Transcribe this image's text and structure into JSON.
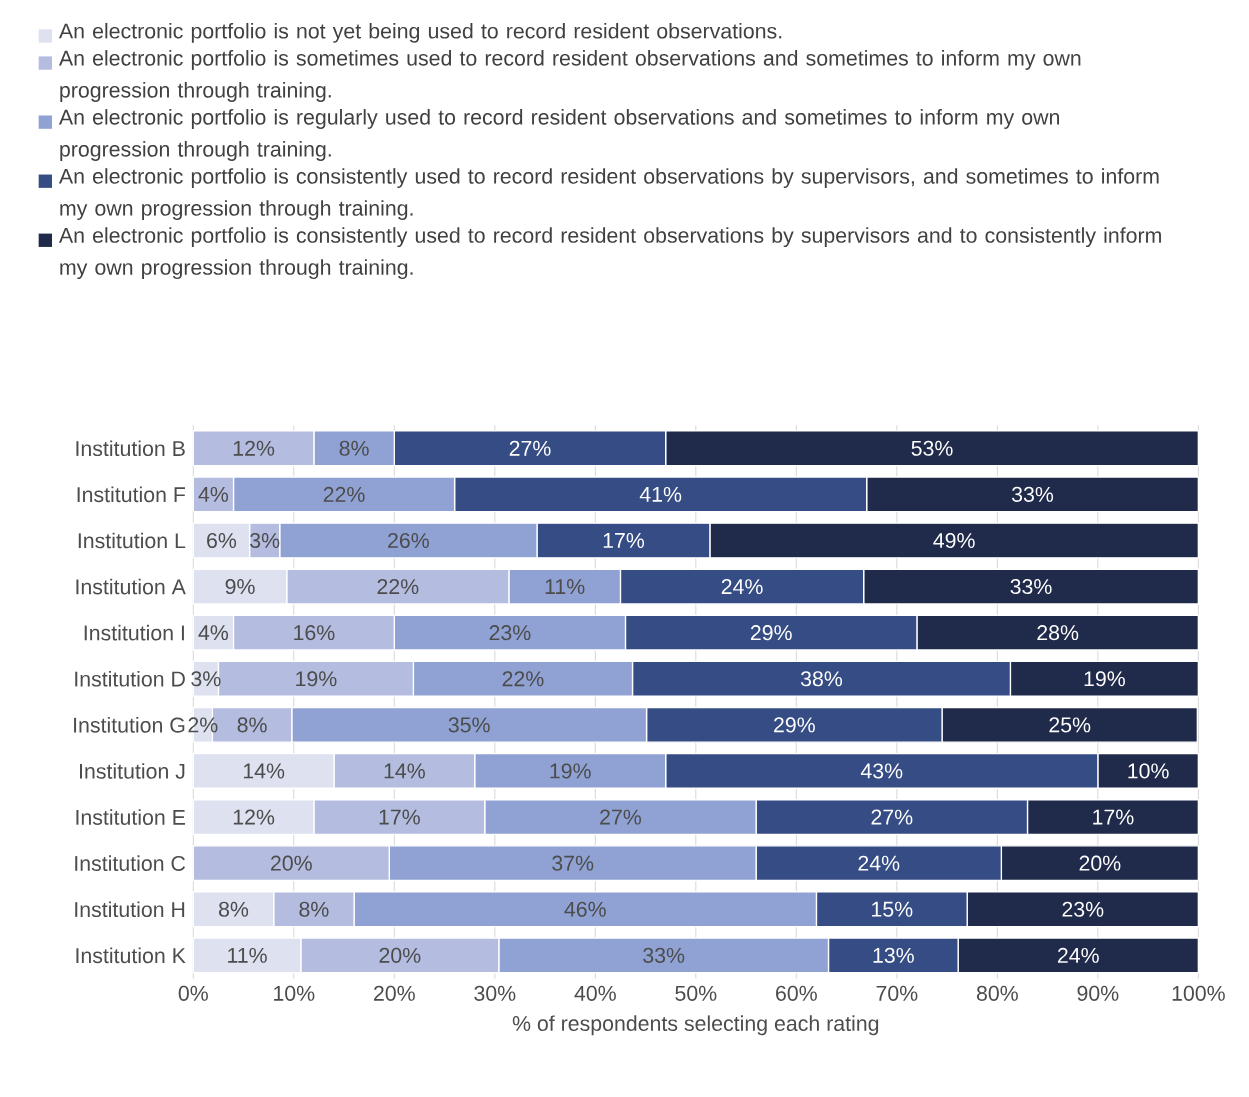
{
  "chart_data": {
    "type": "bar",
    "orientation": "horizontal",
    "stacked": true,
    "xlabel": "% of respondents selecting each rating",
    "categories": [
      "Institution B",
      "Institution F",
      "Institution L",
      "Institution A",
      "Institution I",
      "Institution D",
      "Institution G",
      "Institution J",
      "Institution E",
      "Institution C",
      "Institution H",
      "Institution K"
    ],
    "series": [
      {
        "name": "An electronic portfolio is  not yet  being used to record resident observations.",
        "color": "#dde1f0",
        "values": [
          null,
          null,
          5.6,
          9.3,
          4,
          2.5,
          1.9,
          14,
          12,
          null,
          8,
          10.7
        ],
        "value_labels": [
          null,
          null,
          "6%",
          "9%",
          "4%",
          "3%",
          "2%",
          "14%",
          "12%",
          null,
          "8%",
          "11%"
        ]
      },
      {
        "name": "An electronic portfolio is  sometimes used to record resident observations and  sometimes to inform my own progression through training.",
        "color": "#b4bde0",
        "values": [
          12,
          4,
          3,
          22.1,
          16,
          19.4,
          7.9,
          14,
          17,
          19.5,
          8,
          19.7
        ],
        "value_labels": [
          "12%",
          "4%",
          "3%",
          "22%",
          "16%",
          "19%",
          "8%",
          "14%",
          "17%",
          "20%",
          "8%",
          "20%"
        ]
      },
      {
        "name": "An electronic portfolio is  regularly used to record resident observations and  sometimes to inform my own progression through training.",
        "color": "#8fa2d3",
        "values": [
          8,
          22,
          25.6,
          11.1,
          23,
          21.8,
          35.3,
          19,
          27,
          36.5,
          46,
          32.8
        ],
        "value_labels": [
          "8%",
          "22%",
          "26%",
          "11%",
          "23%",
          "22%",
          "35%",
          "19%",
          "27%",
          "37%",
          "46%",
          "33%"
        ]
      },
      {
        "name": "An electronic portfolio is  consistently used to record resident observations by supervisors, and sometimes to inform my own progression through training.",
        "color": "#364c84",
        "values": [
          27,
          41,
          17.2,
          24.2,
          29,
          37.6,
          29.4,
          43,
          27,
          24.4,
          15,
          12.9
        ],
        "value_labels": [
          "27%",
          "41%",
          "17%",
          "24%",
          "29%",
          "38%",
          "29%",
          "43%",
          "27%",
          "24%",
          "15%",
          "13%"
        ]
      },
      {
        "name": "An electronic portfolio is  consistently used to record resident observations by supervisors and to consistently inform my own progression through training.",
        "color": "#202a4a",
        "values": [
          53,
          33,
          48.6,
          33.3,
          28,
          18.7,
          25.4,
          10,
          17,
          19.6,
          23,
          23.9
        ],
        "value_labels": [
          "53%",
          "33%",
          "49%",
          "33%",
          "28%",
          "19%",
          "25%",
          "10%",
          "17%",
          "20%",
          "23%",
          "24%"
        ]
      }
    ],
    "xlim": [
      0,
      100
    ],
    "xticks": [
      {
        "value": 0,
        "label": "0%"
      },
      {
        "value": 10,
        "label": "10%"
      },
      {
        "value": 20,
        "label": "20%"
      },
      {
        "value": 30,
        "label": "30%"
      },
      {
        "value": 40,
        "label": "40%"
      },
      {
        "value": 50,
        "label": "50%"
      },
      {
        "value": 60,
        "label": "60%"
      },
      {
        "value": 70,
        "label": "70%"
      },
      {
        "value": 80,
        "label": "80%"
      },
      {
        "value": 90,
        "label": "90%"
      },
      {
        "value": 100,
        "label": "100%"
      }
    ],
    "grid": "x",
    "legend": "top"
  }
}
